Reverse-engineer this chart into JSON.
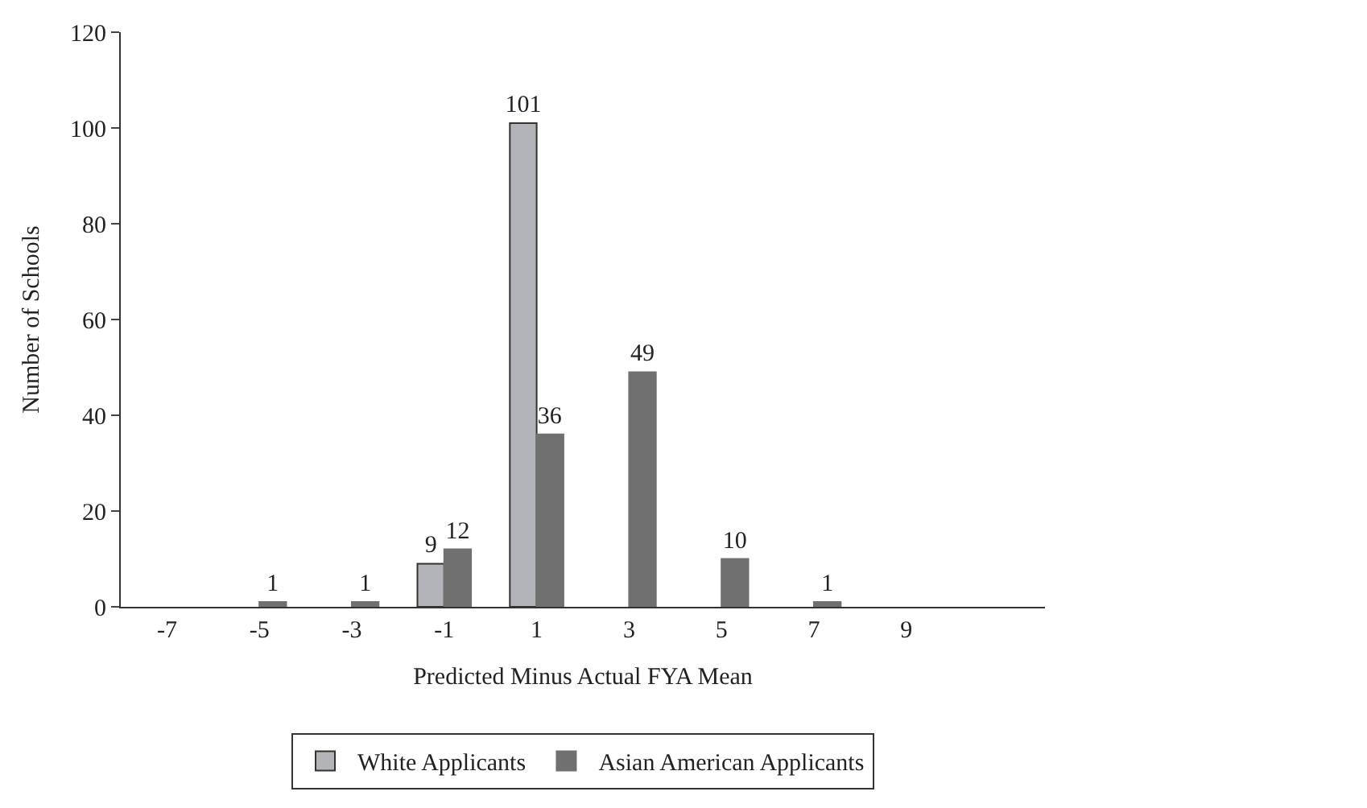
{
  "chart_data": {
    "type": "bar",
    "xlabel": "Predicted Minus Actual FYA Mean",
    "ylabel": "Number of Schools",
    "categories": [
      "-7",
      "-5",
      "-3",
      "-1",
      "1",
      "3",
      "5",
      "7",
      "9",
      null
    ],
    "series": [
      {
        "name": "White Applicants",
        "color": "#b3b4b8",
        "values": [
          null,
          null,
          null,
          9,
          101,
          null,
          null,
          null,
          null,
          null
        ]
      },
      {
        "name": "Asian American Applicants",
        "color": "#707070",
        "values": [
          null,
          1,
          1,
          12,
          36,
          49,
          10,
          1,
          null,
          null
        ]
      }
    ],
    "ylim": [
      0,
      120
    ],
    "yticks": [
      0,
      20,
      40,
      60,
      80,
      100,
      120
    ],
    "legend": "bottom",
    "data_labels": true
  }
}
